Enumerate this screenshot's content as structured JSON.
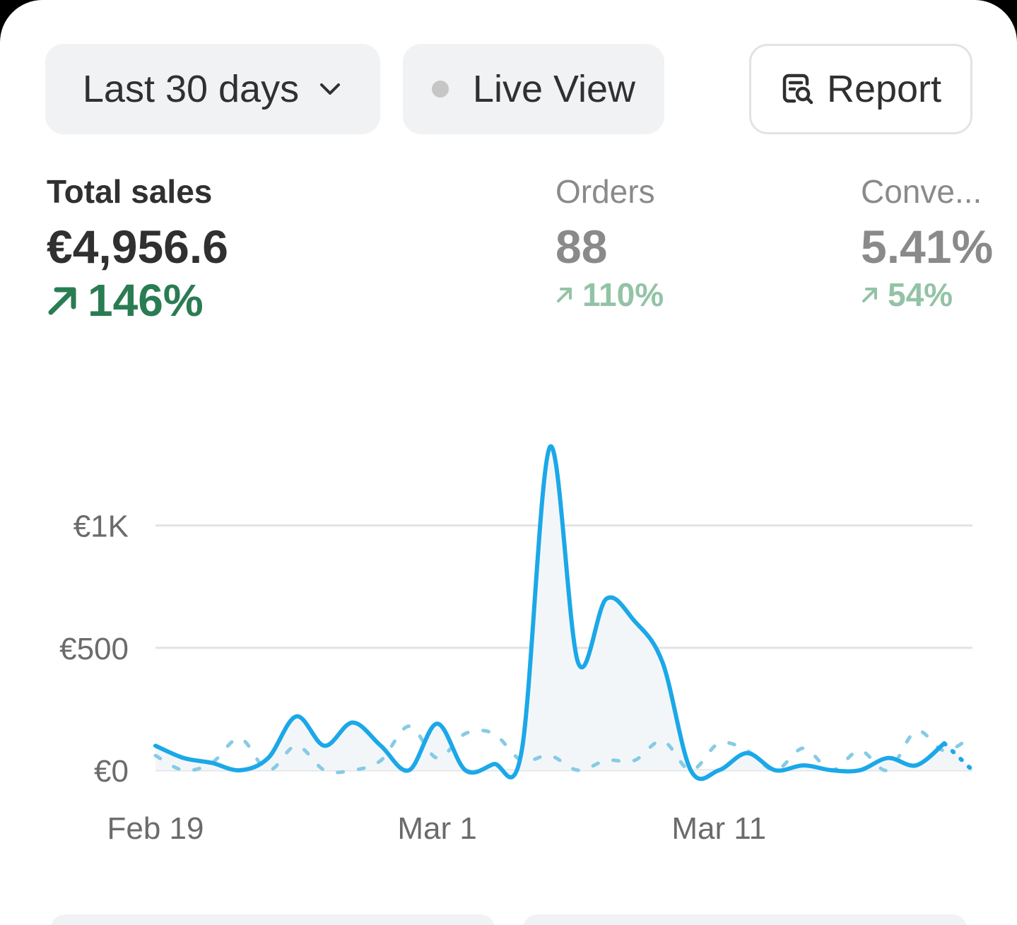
{
  "toolbar": {
    "range_label": "Last 30 days",
    "live_label": "Live View",
    "report_label": "Report"
  },
  "metrics": {
    "sales": {
      "label": "Total sales",
      "value": "€4,956.6",
      "delta": "146%"
    },
    "orders": {
      "label": "Orders",
      "value": "88",
      "delta": "110%"
    },
    "conversion": {
      "label": "Conve...",
      "value": "5.41%",
      "delta": "54%"
    }
  },
  "colors": {
    "accent": "#1ba8e8",
    "comparison": "#86cbe6",
    "positive": "#2a7c53",
    "positive_muted": "#93c3a6",
    "grid": "#e3e3e3"
  },
  "chart_data": {
    "type": "line",
    "x": [
      "Feb 19",
      "Feb 20",
      "Feb 21",
      "Feb 22",
      "Feb 23",
      "Feb 24",
      "Feb 25",
      "Feb 26",
      "Feb 27",
      "Feb 28",
      "Mar 1",
      "Mar 2",
      "Mar 3",
      "Mar 4",
      "Mar 5",
      "Mar 6",
      "Mar 7",
      "Mar 8",
      "Mar 9",
      "Mar 10",
      "Mar 11",
      "Mar 12",
      "Mar 13",
      "Mar 14",
      "Mar 15",
      "Mar 16",
      "Mar 17",
      "Mar 18",
      "Mar 19",
      "Mar 20"
    ],
    "series": [
      {
        "values": [
          100,
          50,
          30,
          0,
          50,
          220,
          100,
          195,
          100,
          0,
          190,
          0,
          25,
          80,
          1320,
          440,
          700,
          610,
          440,
          0,
          0,
          70,
          0,
          20,
          0,
          0,
          50,
          20,
          110,
          0
        ]
      },
      {
        "values": [
          60,
          0,
          30,
          130,
          0,
          100,
          0,
          0,
          40,
          180,
          50,
          150,
          150,
          40,
          60,
          0,
          40,
          40,
          120,
          0,
          110,
          80,
          0,
          90,
          0,
          80,
          0,
          160,
          80,
          140
        ]
      }
    ],
    "xticks": [
      "Feb 19",
      "Mar 1",
      "Mar 11"
    ],
    "yticks": [
      "€0",
      "€500",
      "€1K"
    ],
    "ylim": [
      0,
      1400
    ],
    "grid": true
  }
}
